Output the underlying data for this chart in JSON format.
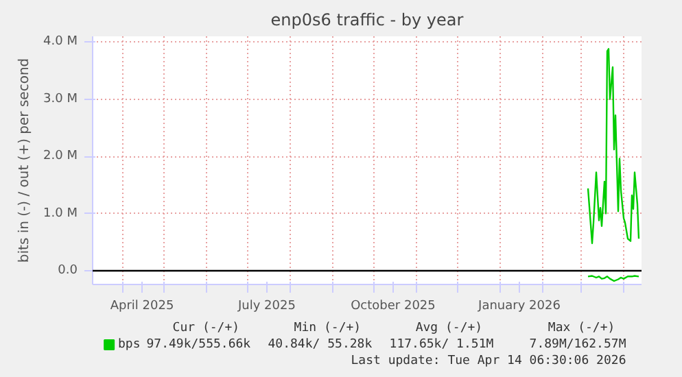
{
  "chart_data": {
    "type": "line",
    "title": "enp0s6 traffic - by year",
    "ylabel": "bits in (-) / out (+) per second",
    "xlim": [
      "2025-03-10",
      "2026-04-14"
    ],
    "xticks": [
      {
        "value": "2025-04-01",
        "label": null
      },
      {
        "value": "2025-04-15",
        "label": "April 2025"
      },
      {
        "value": "2025-05-01",
        "label": null
      },
      {
        "value": "2025-06-01",
        "label": null
      },
      {
        "value": "2025-07-01",
        "label": null
      },
      {
        "value": "2025-07-15",
        "label": "July 2025"
      },
      {
        "value": "2025-08-01",
        "label": null
      },
      {
        "value": "2025-09-01",
        "label": null
      },
      {
        "value": "2025-10-01",
        "label": null
      },
      {
        "value": "2025-10-15",
        "label": "October 2025"
      },
      {
        "value": "2025-11-01",
        "label": null
      },
      {
        "value": "2025-12-01",
        "label": null
      },
      {
        "value": "2026-01-01",
        "label": null
      },
      {
        "value": "2026-01-15",
        "label": "January 2026"
      },
      {
        "value": "2026-02-01",
        "label": null
      },
      {
        "value": "2026-03-01",
        "label": null
      },
      {
        "value": "2026-04-01",
        "label": null
      }
    ],
    "ylim": [
      -240000,
      4100000
    ],
    "yticks": [
      {
        "value": 0,
        "label": "0.0"
      },
      {
        "value": 1000000,
        "label": "1.0 M"
      },
      {
        "value": 2000000,
        "label": "2.0 M"
      },
      {
        "value": 3000000,
        "label": "3.0 M"
      },
      {
        "value": 4000000,
        "label": "4.0 M"
      }
    ],
    "grid": true,
    "legend": "bottom",
    "marker": "none",
    "line_style": "solid",
    "ref_lines": [
      {
        "axis": "y",
        "value": 0,
        "label": null,
        "color": "#000000"
      }
    ],
    "series": [
      {
        "name": "bps",
        "color": "#00cc00",
        "x": [
          "2026-03-06",
          "2026-03-09",
          "2026-03-10",
          "2026-03-12",
          "2026-03-14",
          "2026-03-15",
          "2026-03-16",
          "2026-03-18",
          "2026-03-19",
          "2026-03-20",
          "2026-03-21",
          "2026-03-22",
          "2026-03-24",
          "2026-03-25",
          "2026-03-26",
          "2026-03-28",
          "2026-03-29",
          "2026-03-30",
          "2026-04-01",
          "2026-04-02",
          "2026-04-04",
          "2026-04-06",
          "2026-04-07",
          "2026-04-08",
          "2026-04-09",
          "2026-04-11",
          "2026-04-12"
        ],
        "values": [
          1440000,
          480000,
          840000,
          1720000,
          880000,
          1100000,
          780000,
          1560000,
          1000000,
          3840000,
          3880000,
          3000000,
          3560000,
          2120000,
          2720000,
          1040000,
          1960000,
          1400000,
          920000,
          840000,
          560000,
          520000,
          1320000,
          1080000,
          1720000,
          1160000,
          560000
        ]
      },
      {
        "color": "#00cc00",
        "x": [
          "2026-03-06",
          "2026-03-09",
          "2026-03-12",
          "2026-03-14",
          "2026-03-16",
          "2026-03-18",
          "2026-03-20",
          "2026-03-22",
          "2026-03-25",
          "2026-03-28",
          "2026-03-30",
          "2026-04-01",
          "2026-04-04",
          "2026-04-07",
          "2026-04-09",
          "2026-04-12"
        ],
        "values": [
          -100000,
          -90000,
          -120000,
          -100000,
          -140000,
          -130000,
          -100000,
          -140000,
          -180000,
          -150000,
          -120000,
          -140000,
          -100000,
          -100000,
          -90000,
          -100000
        ]
      }
    ],
    "annotations": [
      "Cur (-/+)",
      "Min (-/+)",
      "Avg (-/+)",
      "Max (-/+)",
      "97.49k/555.66k",
      "40.84k/ 55.28k",
      "117.65k/ 1.51M",
      "7.89M/162.57M",
      "Last update: Tue Apr 14 06:30:06 2026"
    ]
  }
}
